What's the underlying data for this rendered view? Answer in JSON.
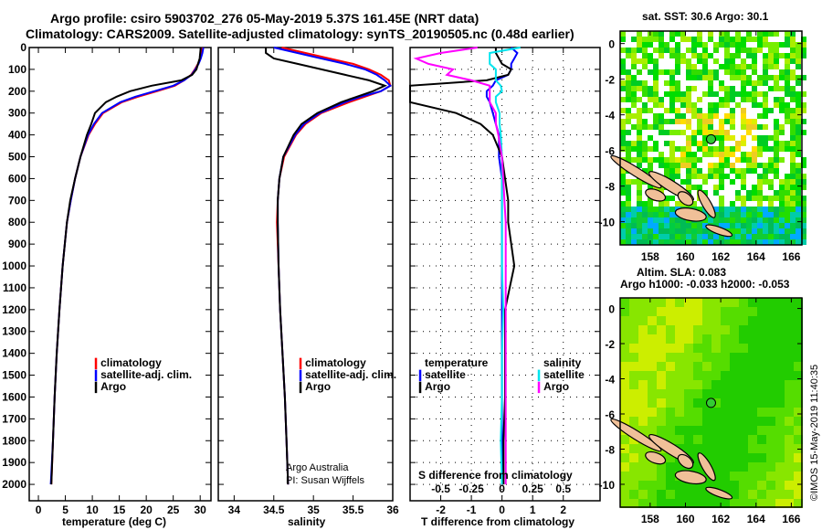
{
  "header": {
    "title_line1": "Argo profile: csiro 5903702_276 05-May-2019 5.37S 161.45E (NRT data)",
    "title_line2": "Climatology: CARS2009. Satellite-adjusted climatology: synTS_20190505.nc (0.48d earlier)"
  },
  "credit": "©IMOS 15-May-2019 11:40:35",
  "colors": {
    "climatology": "#ff0000",
    "satellite_adj": "#0000ff",
    "argo": "#000000",
    "s_satellite": "#00e5ee",
    "s_argo": "#ff00ff"
  },
  "chart_data": [
    {
      "type": "line",
      "id": "temperature",
      "xlabel": "temperature (deg C)",
      "ylabel": "",
      "xlim": [
        -1.7,
        32
      ],
      "ylim": [
        2075,
        0
      ],
      "xticks": [
        "0",
        "5",
        "10",
        "15",
        "20",
        "25",
        "30"
      ],
      "yticks": [
        "0",
        "100",
        "200",
        "300",
        "400",
        "500",
        "600",
        "700",
        "800",
        "900",
        "1000",
        "1100",
        "1200",
        "1300",
        "1400",
        "1500",
        "1600",
        "1700",
        "1800",
        "1900",
        "2000"
      ],
      "legend": [
        "climatology",
        "satellite-adj. clim.",
        "Argo"
      ],
      "depth": [
        0,
        25,
        50,
        75,
        100,
        125,
        150,
        175,
        200,
        225,
        250,
        300,
        350,
        400,
        500,
        600,
        700,
        800,
        1000,
        1200,
        1400,
        1600,
        1800,
        2000
      ],
      "series": [
        {
          "name": "climatology",
          "color": "#ff0000",
          "values": [
            30.3,
            30.2,
            30,
            29.6,
            29.0,
            28.3,
            27.0,
            25.3,
            22,
            18.5,
            15.5,
            12,
            10.5,
            9.3,
            7.8,
            6.8,
            6.0,
            5.3,
            4.5,
            3.9,
            3.4,
            3.0,
            2.7,
            2.4
          ]
        },
        {
          "name": "satellite-adj. clim.",
          "color": "#0000ff",
          "values": [
            30.6,
            30.4,
            30.1,
            29.7,
            29.1,
            28.4,
            27.0,
            25.0,
            21.5,
            18,
            15.2,
            11.8,
            10.3,
            9.2,
            7.8,
            6.8,
            6.0,
            5.3,
            4.5,
            3.9,
            3.4,
            3.0,
            2.7,
            2.3
          ]
        },
        {
          "name": "Argo",
          "color": "#000000",
          "values": [
            30.1,
            30.0,
            29.9,
            29.6,
            29.3,
            28.5,
            26.5,
            21,
            17,
            14.5,
            12.5,
            10.5,
            9.8,
            9.0,
            7.8,
            6.8,
            5.9,
            5.3,
            4.5,
            3.9,
            3.4,
            3.0,
            2.7,
            2.4
          ]
        }
      ]
    },
    {
      "type": "line",
      "id": "salinity",
      "xlabel": "salinity",
      "xlim": [
        33.8,
        36.0
      ],
      "ylim": [
        2075,
        0
      ],
      "xticks": [
        "34",
        "34.5",
        "35",
        "35.5",
        "36"
      ],
      "legend": [
        "climatology",
        "satellite-adj. clim.",
        "Argo"
      ],
      "annotations": [
        "Argo Australia",
        "PI: Susan Wijffels"
      ],
      "depth": [
        0,
        25,
        50,
        75,
        100,
        125,
        150,
        175,
        200,
        225,
        250,
        300,
        350,
        400,
        500,
        600,
        700,
        800,
        1000,
        1200,
        1400,
        1600,
        1800,
        2000
      ],
      "series": [
        {
          "name": "climatology",
          "color": "#ff0000",
          "values": [
            34.6,
            34.9,
            35.2,
            35.5,
            35.7,
            35.85,
            35.95,
            35.97,
            35.85,
            35.65,
            35.45,
            35.1,
            34.9,
            34.78,
            34.63,
            34.57,
            34.55,
            34.54,
            34.56,
            34.58,
            34.61,
            34.64,
            34.66,
            34.68
          ]
        },
        {
          "name": "satellite-adj. clim.",
          "color": "#0000ff",
          "values": [
            34.5,
            34.8,
            35.1,
            35.4,
            35.65,
            35.8,
            35.9,
            35.97,
            35.85,
            35.6,
            35.4,
            35.08,
            34.88,
            34.77,
            34.62,
            34.57,
            34.55,
            34.55,
            34.56,
            34.58,
            34.61,
            34.64,
            34.66,
            34.68
          ]
        },
        {
          "name": "Argo",
          "color": "#000000",
          "values": [
            34.4,
            34.4,
            34.5,
            34.8,
            35.1,
            35.4,
            35.7,
            35.9,
            35.75,
            35.55,
            35.35,
            35.05,
            34.85,
            34.75,
            34.62,
            34.57,
            34.55,
            34.55,
            34.56,
            34.58,
            34.61,
            34.64,
            34.66,
            34.68
          ]
        }
      ]
    },
    {
      "type": "line",
      "id": "difference",
      "xlabel": "T difference from climatology",
      "x2label": "S difference from climatology",
      "xlim": [
        -3,
        3.2
      ],
      "x2lim": [
        -0.75,
        0.8
      ],
      "ylim": [
        2075,
        0
      ],
      "grid": true,
      "xticks": [
        "-2",
        "-1",
        "0",
        "1",
        "2"
      ],
      "x2ticks": [
        "-0.5",
        "-0.25",
        "0",
        "0.25",
        "0.5"
      ],
      "legend_temperature_title": "temperature",
      "legend_salinity_title": "salinity",
      "legend_temperature": [
        "satellite",
        "Argo"
      ],
      "legend_salinity": [
        "satellite",
        "Argo"
      ],
      "depth": [
        0,
        25,
        50,
        75,
        100,
        125,
        150,
        175,
        200,
        225,
        250,
        300,
        350,
        400,
        500,
        600,
        700,
        800,
        1000,
        1200,
        1400,
        1600,
        1800,
        2000
      ],
      "series": [
        {
          "name": "T satellite",
          "axis": "T",
          "color": "#0000ff",
          "values": [
            0.3,
            0.5,
            0.4,
            0.3,
            0.3,
            0.2,
            -0.2,
            -0.3,
            -0.5,
            -0.5,
            -0.4,
            -0.3,
            -0.2,
            -0.1,
            -0.1,
            0,
            0,
            0,
            0,
            0,
            0,
            0,
            0,
            0
          ]
        },
        {
          "name": "T Argo",
          "axis": "T",
          "color": "#000000",
          "values": [
            -0.2,
            -0.2,
            -0.1,
            0,
            0.3,
            0.2,
            -0.5,
            -4,
            -4.5,
            -3.5,
            -3,
            -1.5,
            -0.7,
            -0.3,
            0,
            0.1,
            0.2,
            0.2,
            0.4,
            0.1,
            0.1,
            0.1,
            0.05,
            0.05
          ]
        },
        {
          "name": "S satellite",
          "axis": "S",
          "color": "#00e5ee",
          "values": [
            0.15,
            -0.1,
            -0.1,
            -0.1,
            -0.05,
            -0.05,
            -0.05,
            -0.01,
            0,
            -0.05,
            -0.05,
            -0.02,
            -0.02,
            -0.01,
            0,
            0,
            0,
            0,
            0,
            0.01,
            0,
            0,
            -0.01,
            0
          ]
        },
        {
          "name": "S Argo",
          "axis": "S",
          "color": "#ff00ff",
          "values": [
            -0.2,
            -0.5,
            -0.7,
            -0.6,
            -0.4,
            -0.45,
            -0.25,
            -0.1,
            -0.1,
            -0.1,
            -0.1,
            -0.05,
            -0.05,
            -0.03,
            0,
            0.01,
            0.02,
            0.03,
            0.03,
            0.03,
            0.03,
            0.03,
            0.03,
            0.03
          ]
        }
      ]
    },
    {
      "type": "heatmap",
      "id": "sst-map",
      "title": "sat. SST: 30.6 Argo: 30.1",
      "xlim": [
        156.3,
        166.6
      ],
      "ylim": [
        -11.3,
        0.7
      ],
      "xticks": [
        "158",
        "160",
        "162",
        "164",
        "166"
      ],
      "yticks": [
        "0",
        "-2",
        "-4",
        "-6",
        "-8",
        "-10"
      ],
      "marker": {
        "lon": 161.45,
        "lat": -5.37
      }
    },
    {
      "type": "heatmap",
      "id": "sla-map",
      "title": "Altim. SLA: 0.083",
      "subtitle": "Argo h1000: -0.033 h2000: -0.053",
      "xlim": [
        156.3,
        166.6
      ],
      "ylim": [
        -11.3,
        0.6
      ],
      "xticks": [
        "158",
        "160",
        "162",
        "164",
        "166"
      ],
      "yticks": [
        "0",
        "-2",
        "-4",
        "-6",
        "-8",
        "-10"
      ],
      "marker": {
        "lon": 161.45,
        "lat": -5.37
      }
    }
  ]
}
